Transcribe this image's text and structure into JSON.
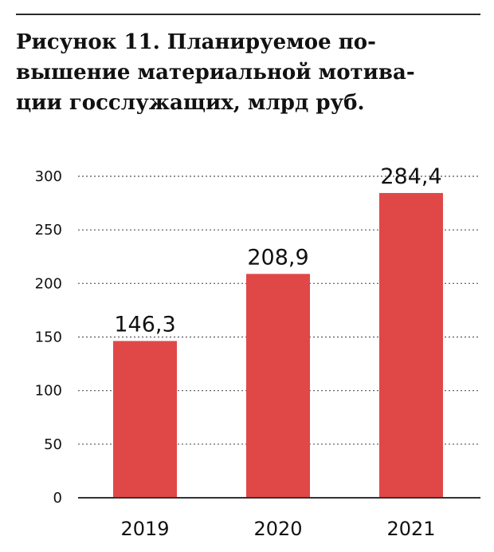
{
  "figure": {
    "title_lines": [
      "Рисунок 11. Планируемое по-",
      "вышение материальной мотива-",
      "ции госслужащих, млрд руб."
    ]
  },
  "chart_data": {
    "type": "bar",
    "title": "Рисунок 11. Планируемое повышение материальной мотивации госслужащих, млрд руб.",
    "categories": [
      "2019",
      "2020",
      "2021"
    ],
    "values": [
      146.3,
      208.9,
      284.4
    ],
    "value_labels": [
      "146,3",
      "208,9",
      "284,4"
    ],
    "ylim": [
      0,
      300
    ],
    "yticks": [
      0,
      50,
      100,
      150,
      200,
      250,
      300
    ],
    "grid": true,
    "bar_color": "#e04848",
    "grid_color": "#555555"
  }
}
